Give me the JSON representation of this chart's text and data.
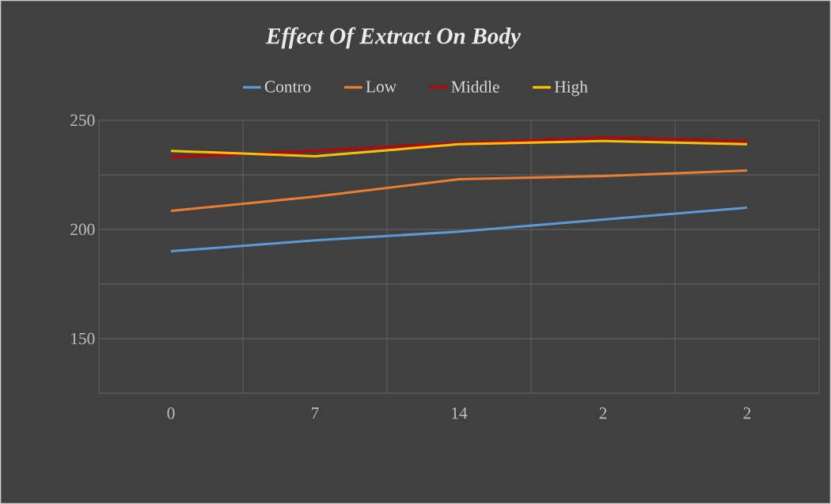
{
  "chart_data": {
    "type": "line",
    "title": "Effect Of Extract On Body",
    "categories": [
      "0",
      "7",
      "14",
      "2",
      "2"
    ],
    "series": [
      {
        "name": "Contro",
        "color": "#5b9bd5",
        "values": [
          190,
          195,
          199,
          204.5,
          210
        ]
      },
      {
        "name": "Low",
        "color": "#ed7d31",
        "values": [
          208.5,
          215,
          223,
          224.5,
          227
        ]
      },
      {
        "name": "Middle",
        "color": "#c00000",
        "values": [
          233,
          236,
          239.5,
          242,
          240.5
        ]
      },
      {
        "name": "High",
        "color": "#ffc000",
        "values": [
          236,
          233.5,
          239,
          240.5,
          239
        ]
      }
    ],
    "ylim": [
      125,
      250
    ],
    "yticks": [
      {
        "value": 125,
        "label": null
      },
      150,
      {
        "value": 175,
        "label": null
      },
      200,
      {
        "value": 225,
        "label": null
      },
      250
    ],
    "grid": true,
    "legend": "top",
    "marker": "none",
    "line_style": "solid"
  }
}
